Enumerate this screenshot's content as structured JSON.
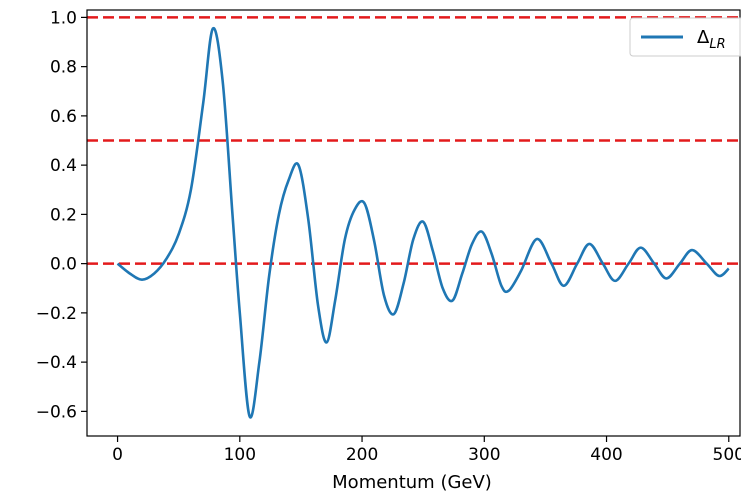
{
  "chart_data": {
    "type": "line",
    "xlabel": "Momentum (GeV)",
    "ylabel": "",
    "xlim": [
      -25,
      510
    ],
    "ylim": [
      -0.7,
      1.03
    ],
    "xticks": [
      0,
      100,
      200,
      300,
      400,
      500
    ],
    "xtick_labels": [
      "0",
      "100",
      "200",
      "300",
      "400",
      "500"
    ],
    "yticks": [
      -0.6,
      -0.4,
      -0.2,
      0.0,
      0.2,
      0.4,
      0.6,
      0.8,
      1.0
    ],
    "ytick_labels": [
      "−0.6",
      "−0.4",
      "−0.2",
      "0.0",
      "0.2",
      "0.4",
      "0.6",
      "0.8",
      "1.0"
    ],
    "grid": false,
    "legend_position": "top-right",
    "series": [
      {
        "name": "ΔLR",
        "legend_main": "Δ",
        "legend_sub": "LR",
        "color": "#1f77b4",
        "x": [
          0,
          10,
          20,
          30,
          40,
          50,
          60,
          70,
          78,
          86,
          94,
          100,
          108,
          116,
          124,
          132,
          140,
          148,
          156,
          164,
          171,
          178,
          186,
          194,
          202,
          210,
          218,
          226,
          234,
          242,
          250,
          258,
          266,
          274,
          282,
          290,
          298,
          306,
          314,
          320,
          330,
          343,
          355,
          365,
          376,
          386,
          397,
          407,
          418,
          428,
          439,
          449,
          460,
          470,
          482,
          492,
          500
        ],
        "y": [
          0.0,
          -0.04,
          -0.065,
          -0.04,
          0.02,
          0.12,
          0.3,
          0.65,
          0.955,
          0.74,
          0.2,
          -0.2,
          -0.62,
          -0.4,
          -0.05,
          0.2,
          0.34,
          0.4,
          0.18,
          -0.17,
          -0.32,
          -0.15,
          0.1,
          0.22,
          0.245,
          0.09,
          -0.13,
          -0.205,
          -0.08,
          0.1,
          0.17,
          0.05,
          -0.1,
          -0.15,
          -0.04,
          0.08,
          0.13,
          0.04,
          -0.09,
          -0.11,
          -0.03,
          0.1,
          0.0,
          -0.09,
          0.0,
          0.08,
          0.0,
          -0.07,
          0.0,
          0.065,
          0.0,
          -0.06,
          0.0,
          0.055,
          0.0,
          -0.05,
          -0.02
        ]
      }
    ],
    "reference_lines": [
      {
        "y": 1.0,
        "color": "#e31a1c",
        "style": "dashed"
      },
      {
        "y": 0.5,
        "color": "#e31a1c",
        "style": "dashed"
      },
      {
        "y": 0.0,
        "color": "#e31a1c",
        "style": "dashed"
      }
    ]
  }
}
